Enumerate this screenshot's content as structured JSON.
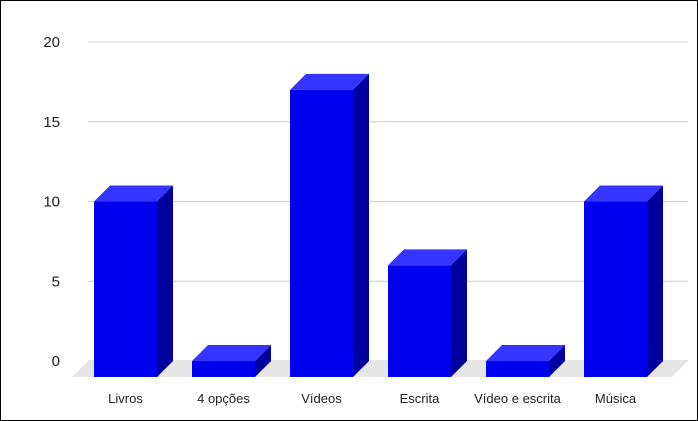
{
  "chart_data": {
    "type": "bar",
    "style": "3d",
    "title": "",
    "xlabel": "",
    "ylabel": "",
    "categories": [
      "Livros",
      "4 opções",
      "Vídeos",
      "Escrita",
      "Vídeo e escrita",
      "Música"
    ],
    "values": [
      11,
      1,
      18,
      7,
      1,
      11
    ],
    "ylim": [
      0,
      20
    ],
    "yticks": [
      0,
      5,
      10,
      15,
      20
    ],
    "grid": true,
    "legend": "none",
    "colors": {
      "bar_front": "#0000ee",
      "bar_top": "#3535ff",
      "bar_side": "#00009c",
      "floor": "#e6e6e6",
      "grid": "#cccccc"
    }
  }
}
